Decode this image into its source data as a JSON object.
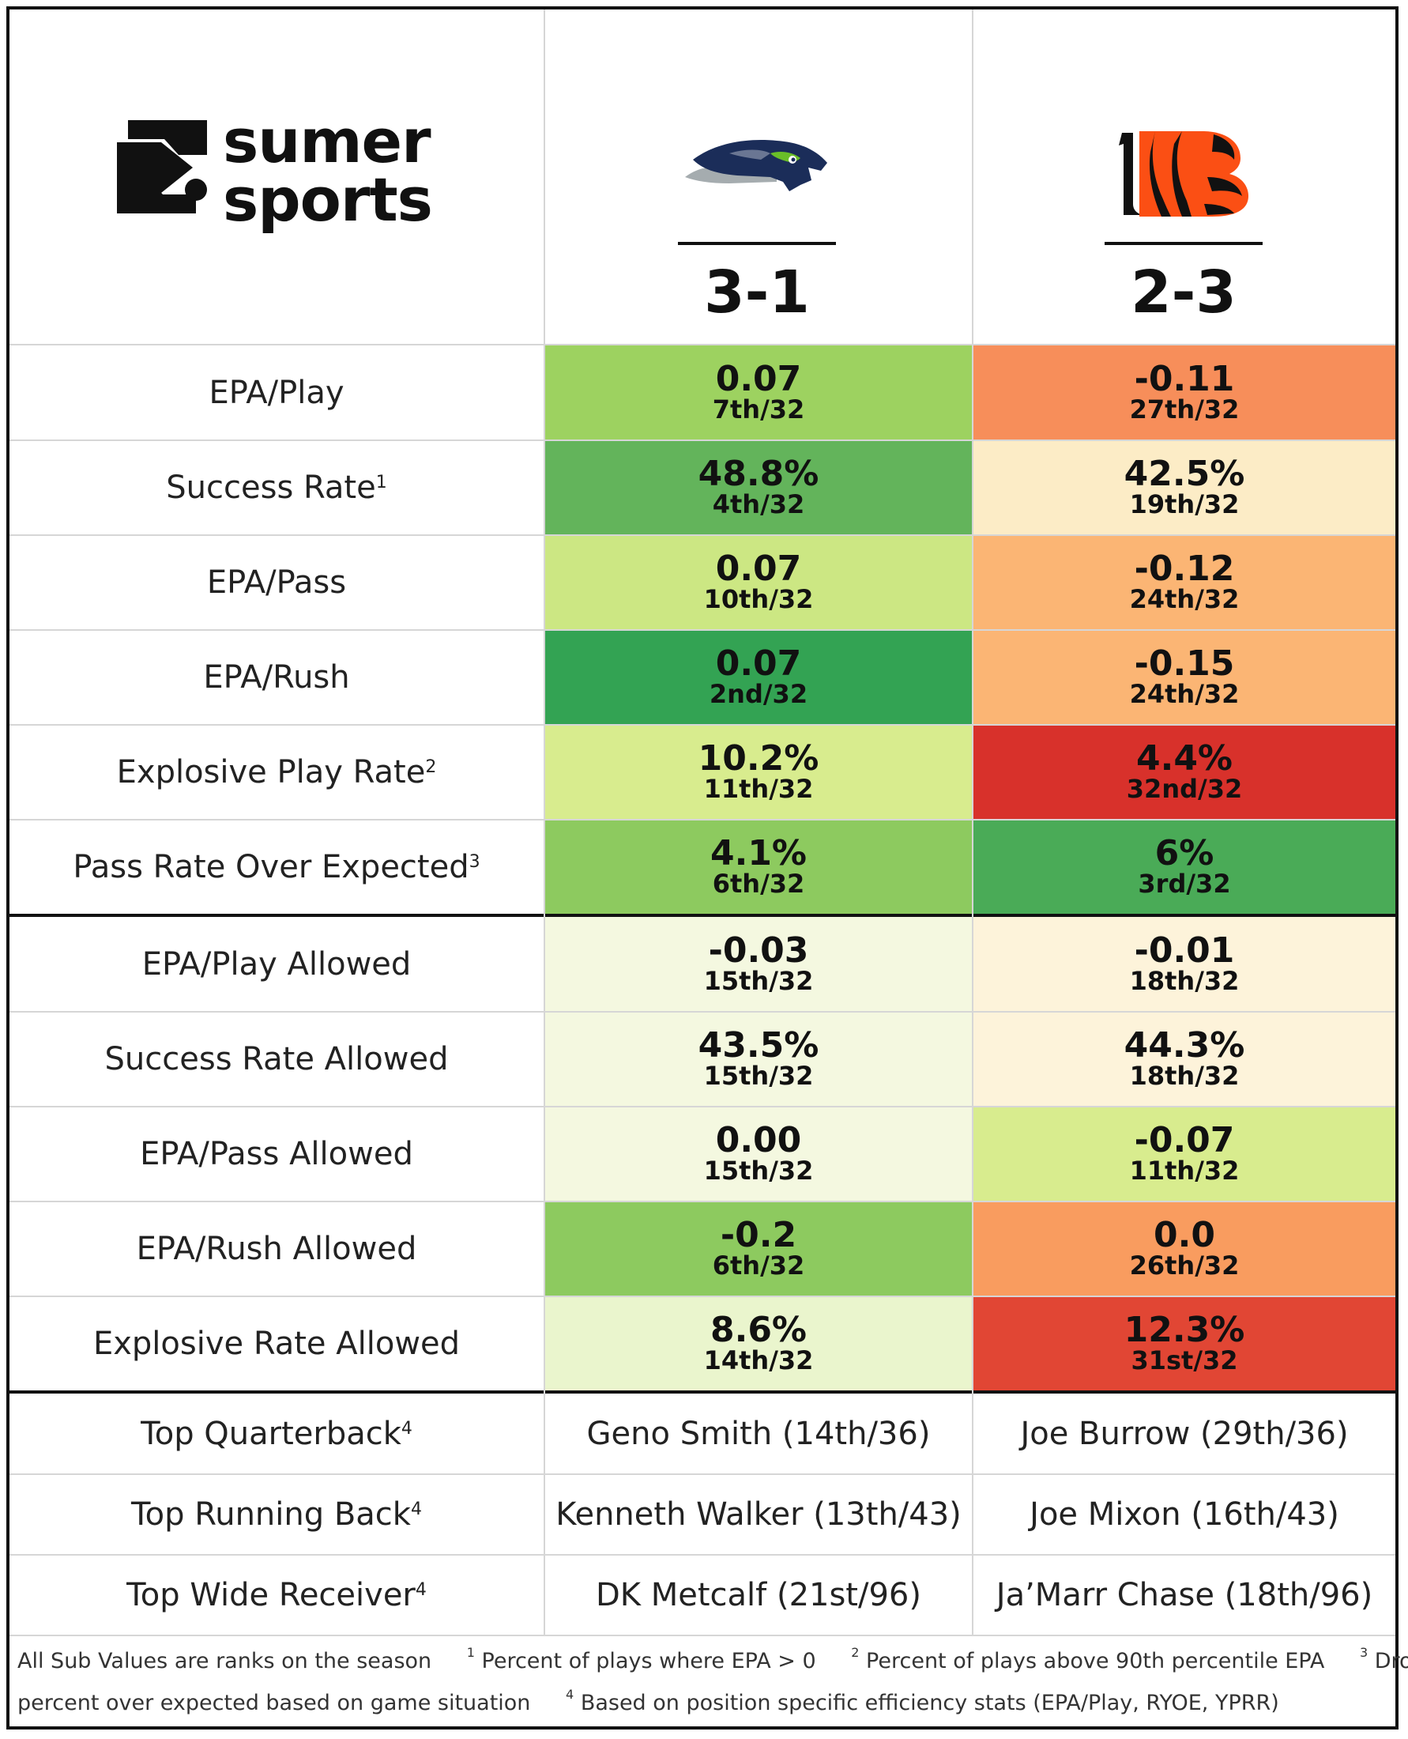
{
  "brand": {
    "line1": "sumer",
    "line2": "sports"
  },
  "teams": {
    "sea": {
      "logo": "seahawks-logo",
      "record": "3-1"
    },
    "cin": {
      "logo": "bengals-logo",
      "record": "2-3"
    }
  },
  "offense": [
    {
      "label": "EPA/Play",
      "note": "",
      "sea": {
        "value": "0.07",
        "rank": "7th/32",
        "color": "#9dd260"
      },
      "cin": {
        "value": "-0.11",
        "rank": "27th/32",
        "color": "#f78e5a"
      }
    },
    {
      "label": "Success Rate",
      "note": "1",
      "sea": {
        "value": "48.8%",
        "rank": "4th/32",
        "color": "#63b45b"
      },
      "cin": {
        "value": "42.5%",
        "rank": "19th/32",
        "color": "#fcecc6"
      }
    },
    {
      "label": "EPA/Pass",
      "note": "",
      "sea": {
        "value": "0.07",
        "rank": "10th/32",
        "color": "#cce783"
      },
      "cin": {
        "value": "-0.12",
        "rank": "24th/32",
        "color": "#fbb574"
      }
    },
    {
      "label": "EPA/Rush",
      "note": "",
      "sea": {
        "value": "0.07",
        "rank": "2nd/32",
        "color": "#33a353"
      },
      "cin": {
        "value": "-0.15",
        "rank": "24th/32",
        "color": "#fbb574"
      }
    },
    {
      "label": "Explosive Play Rate",
      "note": "2",
      "sea": {
        "value": "10.2%",
        "rank": "11th/32",
        "color": "#d8ec8e"
      },
      "cin": {
        "value": "4.4%",
        "rank": "32nd/32",
        "color": "#d8312b"
      }
    },
    {
      "label": "Pass Rate Over Expected",
      "note": "3",
      "sea": {
        "value": "4.1%",
        "rank": "6th/32",
        "color": "#8dca5f"
      },
      "cin": {
        "value": "6%",
        "rank": "3rd/32",
        "color": "#4aab57"
      }
    }
  ],
  "defense": [
    {
      "label": "EPA/Play Allowed",
      "note": "",
      "sea": {
        "value": "-0.03",
        "rank": "15th/32",
        "color": "#f4f8e0"
      },
      "cin": {
        "value": "-0.01",
        "rank": "18th/32",
        "color": "#fdf3da"
      }
    },
    {
      "label": "Success Rate Allowed",
      "note": "",
      "sea": {
        "value": "43.5%",
        "rank": "15th/32",
        "color": "#f4f8e0"
      },
      "cin": {
        "value": "44.3%",
        "rank": "18th/32",
        "color": "#fdf3da"
      }
    },
    {
      "label": "EPA/Pass Allowed",
      "note": "",
      "sea": {
        "value": "0.00",
        "rank": "15th/32",
        "color": "#f4f8e0"
      },
      "cin": {
        "value": "-0.07",
        "rank": "11th/32",
        "color": "#d8ec8e"
      }
    },
    {
      "label": "EPA/Rush Allowed",
      "note": "",
      "sea": {
        "value": "-0.2",
        "rank": "6th/32",
        "color": "#8dca5f"
      },
      "cin": {
        "value": "0.0",
        "rank": "26th/32",
        "color": "#f99c5f"
      }
    },
    {
      "label": "Explosive Rate Allowed",
      "note": "",
      "sea": {
        "value": "8.6%",
        "rank": "14th/32",
        "color": "#eaf5cd"
      },
      "cin": {
        "value": "12.3%",
        "rank": "31st/32",
        "color": "#e14634"
      }
    }
  ],
  "players": [
    {
      "label": "Top Quarterback",
      "note": "4",
      "sea": "Geno Smith (14th/36)",
      "cin": "Joe Burrow (29th/36)"
    },
    {
      "label": "Top Running Back",
      "note": "4",
      "sea": "Kenneth Walker (13th/43)",
      "cin": "Joe Mixon (16th/43)"
    },
    {
      "label": "Top Wide Receiver",
      "note": "4",
      "sea": "DK Metcalf (21st/96)",
      "cin": "Ja’Marr Chase (18th/96)"
    }
  ],
  "footnotes": {
    "intro": "All Sub Values are ranks on the season",
    "n1_mark": "1",
    "n1": "Percent of plays where EPA > 0",
    "n2_mark": "2",
    "n2": "Percent of plays above 90th percentile EPA",
    "n3_mark": "3",
    "n3a": "Dropback",
    "n3b": "percent over expected based on game situation",
    "n4_mark": "4",
    "n4": "Based on position specific efficiency stats (EPA/Play, RYOE, YPRR)"
  }
}
